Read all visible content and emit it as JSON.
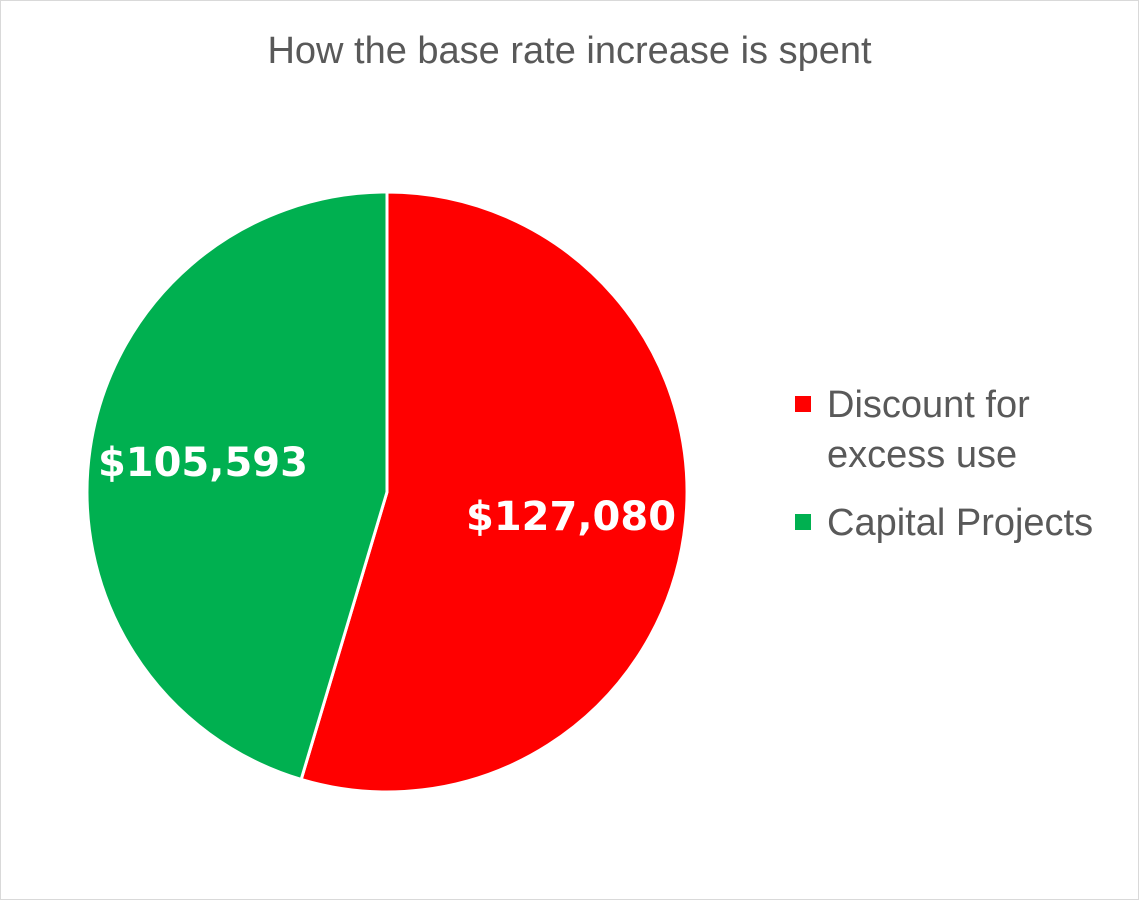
{
  "chart_data": {
    "type": "pie",
    "title": "How the base rate increase is spent",
    "series": [
      {
        "name": "Discount for excess use",
        "legend_lines": [
          "Discount for",
          "excess use"
        ],
        "value": 127080,
        "label": "$127,080",
        "color": "#ff0000"
      },
      {
        "name": "Capital Projects",
        "legend_lines": [
          "Capital Projects"
        ],
        "value": 105593,
        "label": "$105,593",
        "color": "#00b050"
      }
    ],
    "start_angle_deg": 0,
    "direction": "clockwise",
    "legend_position": "right"
  }
}
